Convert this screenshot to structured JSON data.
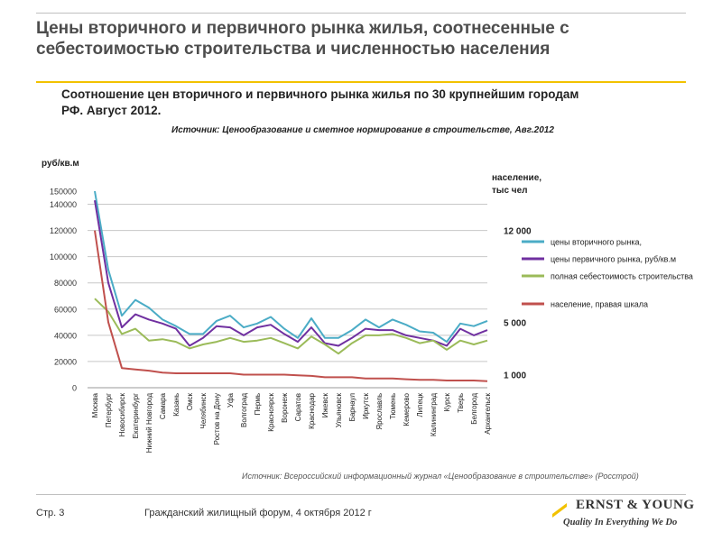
{
  "slide": {
    "title": "Цены вторичного и первичного рынка жилья, соотнесенные с себестоимостью строительства и численностью населения",
    "page_number": "Стр. 3",
    "footer_text": "Гражданский жилищный форум, 4 октября 2012 г",
    "brand_name": "ERNST & YOUNG",
    "brand_tagline": "Quality In Everything We Do"
  },
  "chart_data": {
    "type": "line",
    "title": "Соотношение цен вторичного и первичного рынка жилья по 30 крупнейшим городам РФ.  Август 2012.",
    "source_top": "Источник: Ценообразование и сметное нормирование в строительстве, Авг.2012",
    "source_bottom": "Источник: Всероссийский информационный журнал «Ценообразование в строительстве» (Росстрой)",
    "ylabel": "руб/кв.м",
    "ylabel_right": [
      "население,",
      "тыс чел"
    ],
    "ylim": [
      0,
      150000
    ],
    "yticks": [
      0,
      20000,
      40000,
      60000,
      80000,
      100000,
      120000,
      140000,
      150000
    ],
    "right_ticks": [
      {
        "label": "12 000",
        "value": 12000
      },
      {
        "label": "5 000",
        "value": 5000
      },
      {
        "label": "1 000",
        "value": 1000
      }
    ],
    "right_scale": {
      "left_value_at_0": 0,
      "left_per_unit": 10000
    },
    "grid": true,
    "legend_position": "right",
    "categories": [
      "Москва",
      "Петербург",
      "Новосибирск",
      "Екатеринбург",
      "Нижний Новгород",
      "Самара",
      "Казань",
      "Омск",
      "Челябинск",
      "Ростов на Дону",
      "Уфа",
      "Волгоград",
      "Пермь",
      "Красноярск",
      "Воронеж",
      "Саратов",
      "Краснодар",
      "Ижевск",
      "Ульяновск",
      "Барнаул",
      "Иркутск",
      "Ярославль",
      "Тюмень",
      "Кемерово",
      "Липецк",
      "Калининград",
      "Курск",
      "Тверь",
      "Белгород",
      "Архангельск"
    ],
    "series": [
      {
        "name": "цены вторичного рынка,",
        "color": "#4bacc6",
        "axis": "left",
        "values": [
          150000,
          90000,
          55000,
          67000,
          61000,
          52000,
          47000,
          41000,
          41000,
          51000,
          55000,
          46000,
          49000,
          54000,
          45000,
          38000,
          53000,
          38000,
          38000,
          44000,
          52000,
          46000,
          52000,
          48000,
          43000,
          42000,
          35000,
          49000,
          47000,
          51000
        ]
      },
      {
        "name": "цены первичного рынка, руб/кв.м",
        "color": "#7030a0",
        "axis": "left",
        "values": [
          143000,
          80000,
          46000,
          56000,
          52000,
          49000,
          45000,
          32000,
          38000,
          47000,
          46000,
          40000,
          46000,
          48000,
          41000,
          35000,
          46000,
          34000,
          32000,
          38000,
          45000,
          44000,
          44000,
          40000,
          38000,
          36000,
          32000,
          45000,
          40000,
          44000
        ]
      },
      {
        "name": "полная себестоимость строительства",
        "color": "#9bbb59",
        "axis": "left",
        "values": [
          68000,
          58000,
          41000,
          45000,
          36000,
          37000,
          35000,
          30000,
          33000,
          35000,
          38000,
          35000,
          36000,
          38000,
          34000,
          30000,
          39000,
          33000,
          26000,
          34000,
          40000,
          40000,
          41000,
          38000,
          34000,
          36000,
          29000,
          36000,
          33000,
          36000
        ]
      },
      {
        "name": "население, правая шкала",
        "color": "#c0504d",
        "axis": "right",
        "values": [
          12000,
          5000,
          1500,
          1400,
          1300,
          1150,
          1100,
          1100,
          1100,
          1100,
          1100,
          1000,
          1000,
          1000,
          1000,
          950,
          900,
          800,
          800,
          800,
          700,
          700,
          700,
          650,
          600,
          600,
          550,
          550,
          550,
          500
        ]
      }
    ]
  }
}
